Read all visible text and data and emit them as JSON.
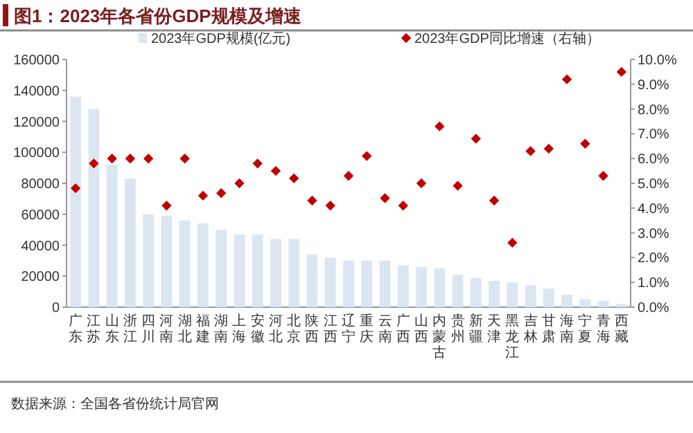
{
  "chart_data": {
    "type": "bar",
    "title": "图1：2023年各省份GDP规模及增速",
    "categories": [
      "广东",
      "江苏",
      "山东",
      "浙江",
      "四川",
      "河南",
      "湖北",
      "福建",
      "湖南",
      "上海",
      "安徽",
      "河北",
      "北京",
      "陕西",
      "江西",
      "辽宁",
      "重庆",
      "云南",
      "广西",
      "山西",
      "内蒙古",
      "贵州",
      "新疆",
      "天津",
      "黑龙江",
      "吉林",
      "甘肃",
      "海南",
      "宁夏",
      "青海",
      "西藏"
    ],
    "series": [
      {
        "name": "2023年GDP规模(亿元)",
        "color": "#dce6f2",
        "values": [
          136000,
          128000,
          92000,
          83000,
          60000,
          59000,
          56000,
          54000,
          50000,
          47000,
          47000,
          44000,
          44000,
          34000,
          32000,
          30000,
          30000,
          30000,
          27000,
          26000,
          25000,
          21000,
          19000,
          17000,
          16000,
          14000,
          12000,
          8000,
          5000,
          4000,
          2000
        ]
      },
      {
        "name": "2023年GDP同比增速（右轴）",
        "type": "scatter",
        "axis": "y2",
        "color": "#c00000",
        "values": [
          4.8,
          5.8,
          6.0,
          6.0,
          6.0,
          4.1,
          6.0,
          4.5,
          4.6,
          5.0,
          5.8,
          5.5,
          5.2,
          4.3,
          4.1,
          5.3,
          6.1,
          4.4,
          4.1,
          5.0,
          7.3,
          4.9,
          6.8,
          4.3,
          2.6,
          6.3,
          6.4,
          9.2,
          6.6,
          5.3,
          9.5
        ]
      }
    ],
    "ylim": [
      0,
      160000
    ],
    "yticks": [
      0,
      20000,
      40000,
      60000,
      80000,
      100000,
      120000,
      140000,
      160000
    ],
    "y2lim": [
      0,
      10
    ],
    "y2ticks": [
      {
        "value": 0,
        "label": "0.0%"
      },
      {
        "value": 1,
        "label": "1.0%"
      },
      {
        "value": 2,
        "label": "2.0%"
      },
      {
        "value": 3,
        "label": "3.0%"
      },
      {
        "value": 4,
        "label": "4.0%"
      },
      {
        "value": 5,
        "label": "5.0%"
      },
      {
        "value": 6,
        "label": "6.0%"
      },
      {
        "value": 7,
        "label": "7.0%"
      },
      {
        "value": 8,
        "label": "8.0%"
      },
      {
        "value": 9,
        "label": "9.0%"
      },
      {
        "value": 10,
        "label": "10.0%"
      }
    ],
    "legend": "top",
    "marker": "diamond",
    "annotations": [
      "数据来源：全国各省份统计局官网"
    ]
  }
}
